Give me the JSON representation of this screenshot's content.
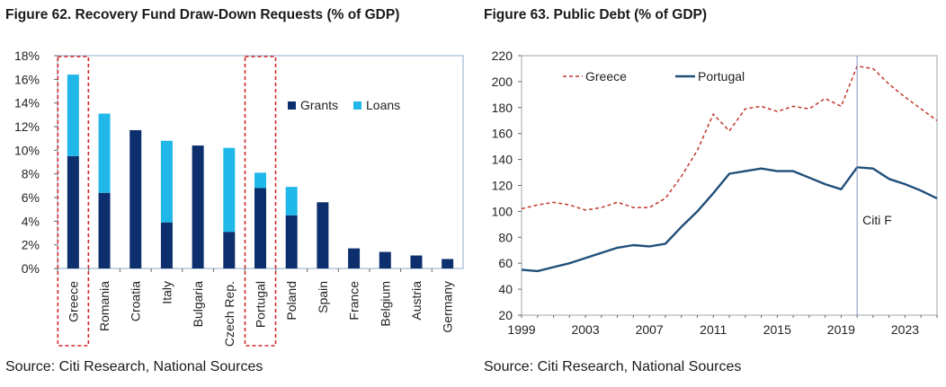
{
  "colors": {
    "grants": "#0d2f6e",
    "loans": "#1fb8e8",
    "greece": "#c0392b",
    "portugal": "#1f4e79",
    "highlight": "#d62728",
    "frame": "#8ea9c8"
  },
  "chart_data": [
    {
      "type": "bar",
      "stacked": true,
      "title": "Figure 62. Recovery Fund Draw-Down Requests (% of GDP)",
      "source": "Source: Citi Research, National Sources",
      "categories": [
        "Greece",
        "Romania",
        "Croatia",
        "Italy",
        "Bulgaria",
        "Czech Rep.",
        "Portugal",
        "Poland",
        "Spain",
        "France",
        "Belgium",
        "Austria",
        "Germany"
      ],
      "series": [
        {
          "name": "Grants",
          "values": [
            9.5,
            6.4,
            11.7,
            3.9,
            10.4,
            3.1,
            6.8,
            4.5,
            5.6,
            1.7,
            1.4,
            1.1,
            0.8
          ]
        },
        {
          "name": "Loans",
          "values": [
            6.9,
            6.7,
            0.0,
            6.9,
            0.0,
            7.1,
            1.3,
            2.4,
            0.0,
            0.0,
            0.0,
            0.0,
            0.0
          ]
        }
      ],
      "ylim": [
        0,
        18
      ],
      "yticks": [
        "0%",
        "2%",
        "4%",
        "6%",
        "8%",
        "10%",
        "12%",
        "14%",
        "16%",
        "18%"
      ],
      "highlighted": [
        "Greece",
        "Portugal"
      ],
      "legend": "top-right"
    },
    {
      "type": "line",
      "title": "Figure 63. Public Debt (% of GDP)",
      "source": "Source: Citi Research, National Sources",
      "x": [
        1999,
        2000,
        2001,
        2002,
        2003,
        2004,
        2005,
        2006,
        2007,
        2008,
        2009,
        2010,
        2011,
        2012,
        2013,
        2014,
        2015,
        2016,
        2017,
        2018,
        2019,
        2020,
        2021,
        2022,
        2023,
        2024,
        2025
      ],
      "series": [
        {
          "name": "Greece",
          "style": "dashed",
          "values": [
            102,
            105,
            107,
            105,
            101,
            103,
            107,
            103,
            103,
            110,
            127,
            147,
            175,
            162,
            179,
            181,
            177,
            181,
            179,
            187,
            181,
            212,
            210,
            198,
            188,
            179,
            170
          ]
        },
        {
          "name": "Portugal",
          "style": "solid",
          "values": [
            55,
            54,
            57,
            60,
            64,
            68,
            72,
            74,
            73,
            75,
            88,
            100,
            114,
            129,
            131,
            133,
            131,
            131,
            126,
            121,
            117,
            134,
            133,
            125,
            121,
            116,
            110
          ]
        }
      ],
      "xticks": [
        1999,
        2003,
        2007,
        2011,
        2015,
        2019,
        2023
      ],
      "xlim": [
        1999,
        2025
      ],
      "ylim": [
        20,
        220
      ],
      "yticks": [
        20,
        40,
        60,
        80,
        100,
        120,
        140,
        160,
        180,
        200,
        220
      ],
      "vline_x": 2020,
      "annotation": "Citi F",
      "legend": "top-left"
    }
  ]
}
